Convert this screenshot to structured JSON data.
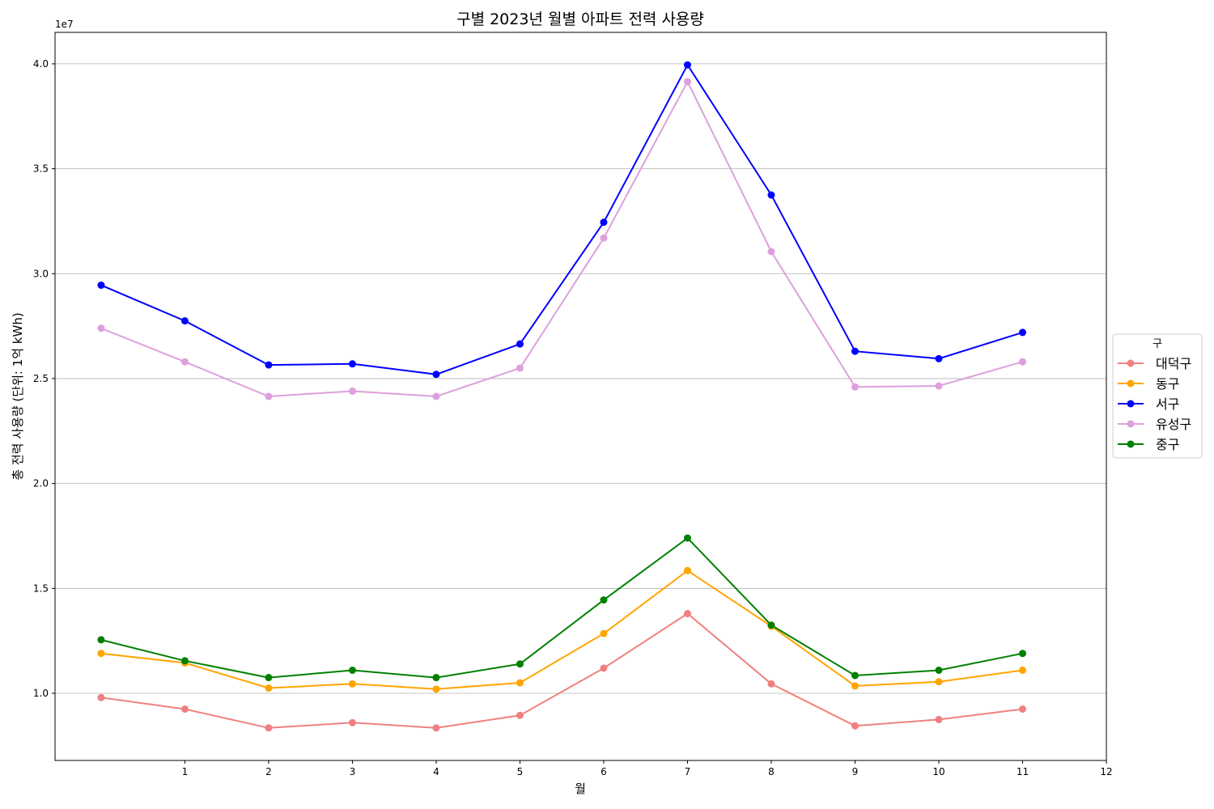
{
  "chart_data": {
    "type": "line",
    "title": "구별 2023년 월별 아파트 전력 사용량",
    "xlabel": "월",
    "ylabel": "총 전력 사용량 (단위: 1억 kWh)",
    "y_offset_label": "1e7",
    "x": [
      0,
      1,
      2,
      3,
      4,
      5,
      6,
      7,
      8,
      9,
      10,
      11
    ],
    "xlim": [
      -0.55,
      12
    ],
    "ylim": [
      6.8,
      41.5
    ],
    "x_ticks": [
      1,
      2,
      3,
      4,
      5,
      6,
      7,
      8,
      9,
      10,
      11,
      12
    ],
    "x_tick_labels": [
      "1",
      "2",
      "3",
      "4",
      "5",
      "6",
      "7",
      "8",
      "9",
      "10",
      "11",
      "12"
    ],
    "y_ticks": [
      10,
      15,
      20,
      25,
      30,
      35,
      40
    ],
    "y_tick_labels": [
      "1.0",
      "1.5",
      "2.0",
      "2.5",
      "3.0",
      "3.5",
      "4.0"
    ],
    "grid": "y",
    "legend_title": "구",
    "legend_position": "right-center outside",
    "series": [
      {
        "name": "대덕구",
        "color": "#f08080",
        "values": [
          9.8,
          9.25,
          8.35,
          8.6,
          8.35,
          8.95,
          11.2,
          13.8,
          10.45,
          8.45,
          8.75,
          9.25
        ]
      },
      {
        "name": "동구",
        "color": "#ffa500",
        "values": [
          11.9,
          11.45,
          10.25,
          10.45,
          10.2,
          10.5,
          12.85,
          15.85,
          13.2,
          10.35,
          10.55,
          11.1
        ]
      },
      {
        "name": "서구",
        "color": "#0000ff",
        "values": [
          29.45,
          27.75,
          25.65,
          25.7,
          25.2,
          26.65,
          32.45,
          39.95,
          33.75,
          26.3,
          25.95,
          27.2
        ]
      },
      {
        "name": "유성구",
        "color": "#dda0dd",
        "values": [
          27.4,
          25.8,
          24.15,
          24.4,
          24.15,
          25.5,
          31.7,
          39.15,
          31.05,
          24.6,
          24.65,
          25.8
        ]
      },
      {
        "name": "중구",
        "color": "#008000",
        "values": [
          12.55,
          11.55,
          10.75,
          11.1,
          10.75,
          11.4,
          14.45,
          17.4,
          13.25,
          10.85,
          11.1,
          11.9
        ]
      }
    ]
  }
}
